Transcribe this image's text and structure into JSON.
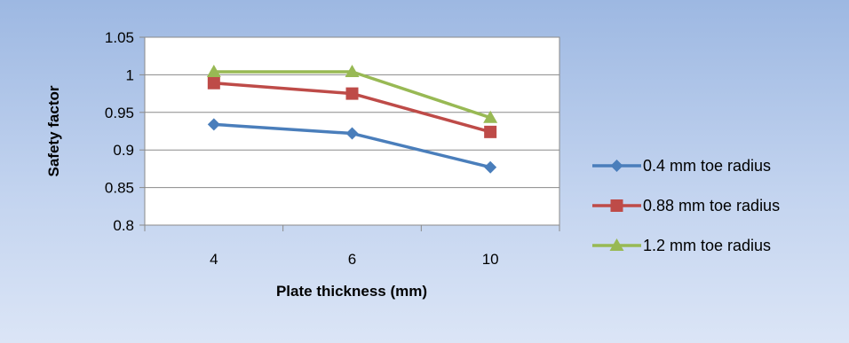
{
  "chart_data": {
    "type": "line",
    "title": "",
    "xlabel": "Plate thickness (mm)",
    "ylabel": "Safety factor",
    "categories": [
      "4",
      "6",
      "10"
    ],
    "ylim": [
      0.8,
      1.05
    ],
    "yticks": [
      "0.8",
      "0.85",
      "0.9",
      "0.95",
      "1",
      "1.05"
    ],
    "grid": "horizontal",
    "legend": "right",
    "series": [
      {
        "name": "0.4 mm toe radius",
        "values": [
          0.934,
          0.922,
          0.877
        ],
        "color": "#4a7ebb",
        "marker": "diamond"
      },
      {
        "name": "0.88 mm toe radius",
        "values": [
          0.989,
          0.975,
          0.924
        ],
        "color": "#be4b48",
        "marker": "square"
      },
      {
        "name": "1.2 mm toe radius",
        "values": [
          1.004,
          1.004,
          0.943
        ],
        "color": "#98b954",
        "marker": "triangle"
      }
    ]
  }
}
